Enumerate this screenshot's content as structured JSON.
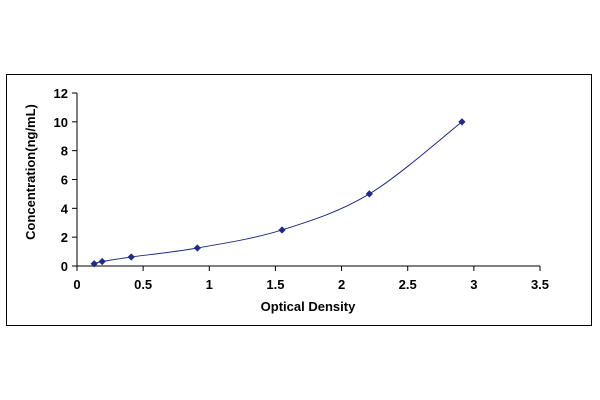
{
  "chart_data": {
    "type": "scatter",
    "title": "",
    "xlabel": "Optical Density",
    "ylabel": "Concentration(ng/mL)",
    "xlim": [
      0,
      3.5
    ],
    "ylim": [
      0,
      12
    ],
    "x_ticks": [
      "0",
      "0.5",
      "1",
      "1.5",
      "2",
      "2.5",
      "3",
      "3.5"
    ],
    "x_tick_values": [
      0,
      0.5,
      1,
      1.5,
      2,
      2.5,
      3,
      3.5
    ],
    "y_ticks": [
      "0",
      "2",
      "4",
      "6",
      "8",
      "10",
      "12"
    ],
    "y_tick_values": [
      0,
      2,
      4,
      6,
      8,
      10,
      12
    ],
    "grid": false,
    "legend": "none",
    "trendline": "smooth curve through points",
    "series": [
      {
        "x": [
          0.13,
          0.19,
          0.41,
          0.91,
          1.55,
          2.21,
          2.91
        ],
        "y": [
          0.156,
          0.3125,
          0.625,
          1.25,
          2.5,
          5,
          10
        ],
        "color": "#1f2a8a",
        "line_color": "#1f2a8a",
        "marker": "diamond"
      }
    ]
  }
}
